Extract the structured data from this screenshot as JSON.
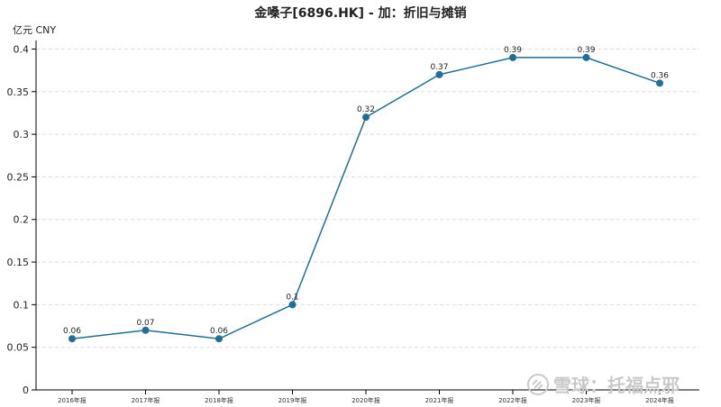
{
  "chart_data": {
    "type": "line",
    "title": "金嗓子[6896.HK] - 加：折旧与摊销",
    "unit_label": "亿元  CNY",
    "categories": [
      "2016年报",
      "2017年报",
      "2018年报",
      "2019年报",
      "2020年报",
      "2021年报",
      "2022年报",
      "2023年报",
      "2024年报"
    ],
    "series": [
      {
        "values": [
          0.06,
          0.07,
          0.06,
          0.1,
          0.32,
          0.37,
          0.39,
          0.39,
          0.36
        ]
      }
    ],
    "value_labels": [
      "0.06",
      "0.07",
      "0.06",
      "0.1",
      "0.32",
      "0.37",
      "0.39",
      "0.39",
      "0.36"
    ],
    "yticks": [
      0,
      0.05,
      0.1,
      0.15,
      0.2,
      0.25,
      0.3,
      0.35,
      0.4
    ],
    "ytick_labels": [
      "0",
      "0.05",
      "0.1",
      "0.15",
      "0.2",
      "0.25",
      "0.3",
      "0.35",
      "0.4"
    ],
    "ylim": [
      0,
      0.41
    ],
    "grid": true,
    "line_color": "#1f6f99",
    "marker_color": "#1f6f99"
  },
  "watermark": {
    "text": "雪球：托福点邪"
  }
}
